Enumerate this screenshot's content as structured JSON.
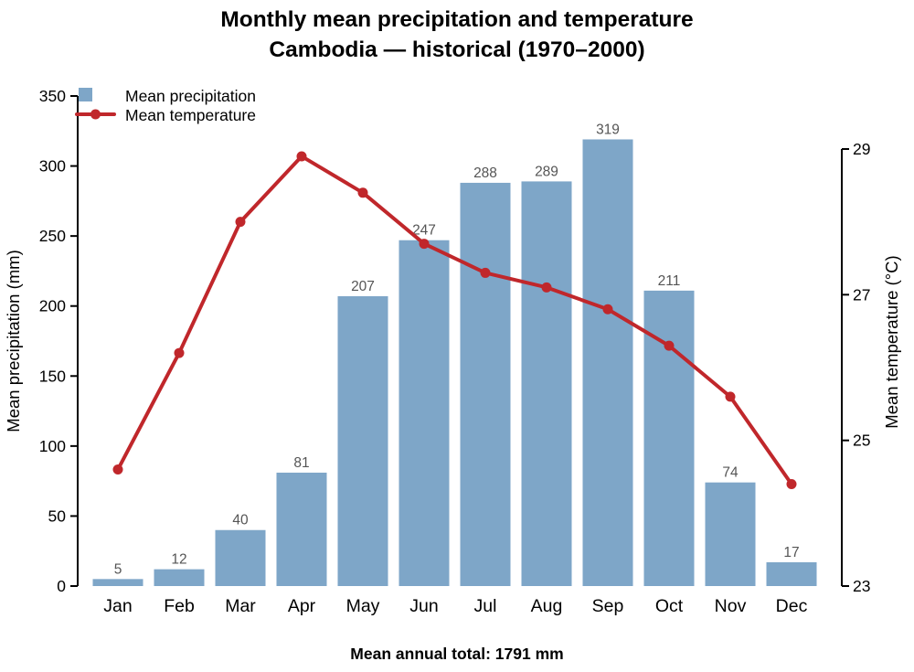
{
  "title": {
    "line1": "Monthly mean precipitation and temperature",
    "line2": "Cambodia — historical (1970–2000)"
  },
  "footer": "Mean annual total: 1791 mm",
  "legend": {
    "precipitation_label": "Mean precipitation",
    "temperature_label": "Mean temperature"
  },
  "colors": {
    "bar": "#7EA6C8",
    "line": "#C0272B",
    "bar_label": "#555555",
    "axis": "#000000",
    "text": "#000000"
  },
  "chart_data": {
    "type": "bar+line",
    "categories": [
      "Jan",
      "Feb",
      "Mar",
      "Apr",
      "May",
      "Jun",
      "Jul",
      "Aug",
      "Sep",
      "Oct",
      "Nov",
      "Dec"
    ],
    "series": [
      {
        "name": "Mean precipitation",
        "type": "bar",
        "axis": "left",
        "unit": "mm",
        "values": [
          5,
          12,
          40,
          81,
          207,
          247,
          288,
          289,
          319,
          211,
          74,
          17
        ]
      },
      {
        "name": "Mean temperature",
        "type": "line",
        "axis": "right",
        "unit": "°C",
        "values": [
          24.6,
          26.2,
          28.0,
          28.9,
          28.4,
          27.7,
          27.3,
          27.1,
          26.8,
          26.3,
          25.6,
          24.4
        ]
      }
    ],
    "left_axis": {
      "label": "Mean precipitation (mm)",
      "ticks": [
        0,
        50,
        100,
        150,
        200,
        250,
        300,
        350
      ],
      "range": [
        0,
        350
      ]
    },
    "right_axis": {
      "label": "Mean temperature (°C)",
      "ticks": [
        23,
        25,
        27,
        29
      ],
      "range": [
        23,
        29
      ]
    },
    "bar_value_labels": true,
    "grid": false,
    "legend_position": "top-left"
  }
}
